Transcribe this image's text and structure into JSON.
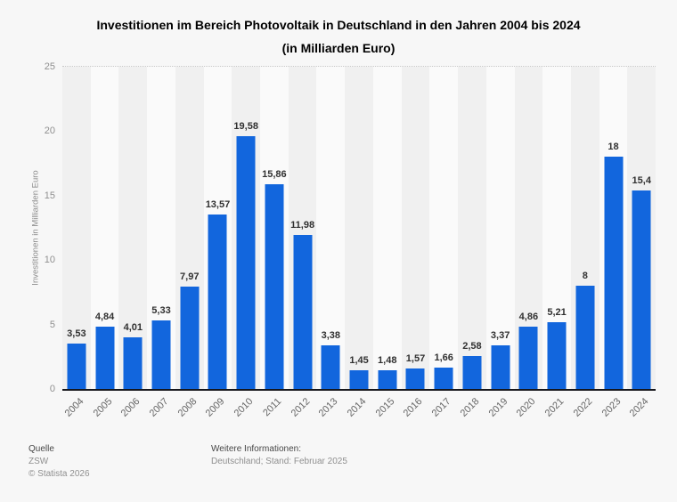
{
  "title": {
    "line1": "Investitionen im Bereich Photovoltaik in Deutschland in den Jahren 2004 bis 2024",
    "line2": "(in Milliarden Euro)"
  },
  "chart_data": {
    "type": "bar",
    "title": "Investitionen im Bereich Photovoltaik in Deutschland in den Jahren 2004 bis 2024 (in Milliarden Euro)",
    "categories": [
      "2004",
      "2005",
      "2006",
      "2007",
      "2008",
      "2009",
      "2010",
      "2011",
      "2012",
      "2013",
      "2014",
      "2015",
      "2016",
      "2017",
      "2018",
      "2019",
      "2020",
      "2021",
      "2022",
      "2023",
      "2024"
    ],
    "values": [
      3.53,
      4.84,
      4.01,
      5.33,
      7.97,
      13.57,
      19.58,
      15.86,
      11.98,
      3.38,
      1.45,
      1.48,
      1.57,
      1.66,
      2.58,
      3.37,
      4.86,
      5.21,
      8,
      18,
      15.4
    ],
    "value_labels": [
      "3,53",
      "4,84",
      "4,01",
      "5,33",
      "7,97",
      "13,57",
      "19,58",
      "15,86",
      "11,98",
      "3,38",
      "1,45",
      "1,48",
      "1,57",
      "1,66",
      "2,58",
      "3,37",
      "4,86",
      "5,21",
      "8",
      "18",
      "15,4"
    ],
    "xlabel": "",
    "ylabel": "Investitionen in Milliarden Euro",
    "ylim": [
      0,
      25
    ],
    "y_ticks": [
      0,
      5,
      10,
      15,
      20,
      25
    ],
    "grid": "horizontal-dotted",
    "legend": false
  },
  "footer": {
    "source_label": "Quelle",
    "source": "ZSW",
    "copyright": "© Statista 2026",
    "info_label": "Weitere Informationen:",
    "info": "Deutschland; Stand: Februar 2025"
  },
  "colors": {
    "accent": "#1266dd",
    "axis": "#16171c",
    "grid": "#c9c9c9",
    "bg": "#f7f7f7",
    "band_dark": "#f0f0f0",
    "band_light": "#fafafa"
  }
}
